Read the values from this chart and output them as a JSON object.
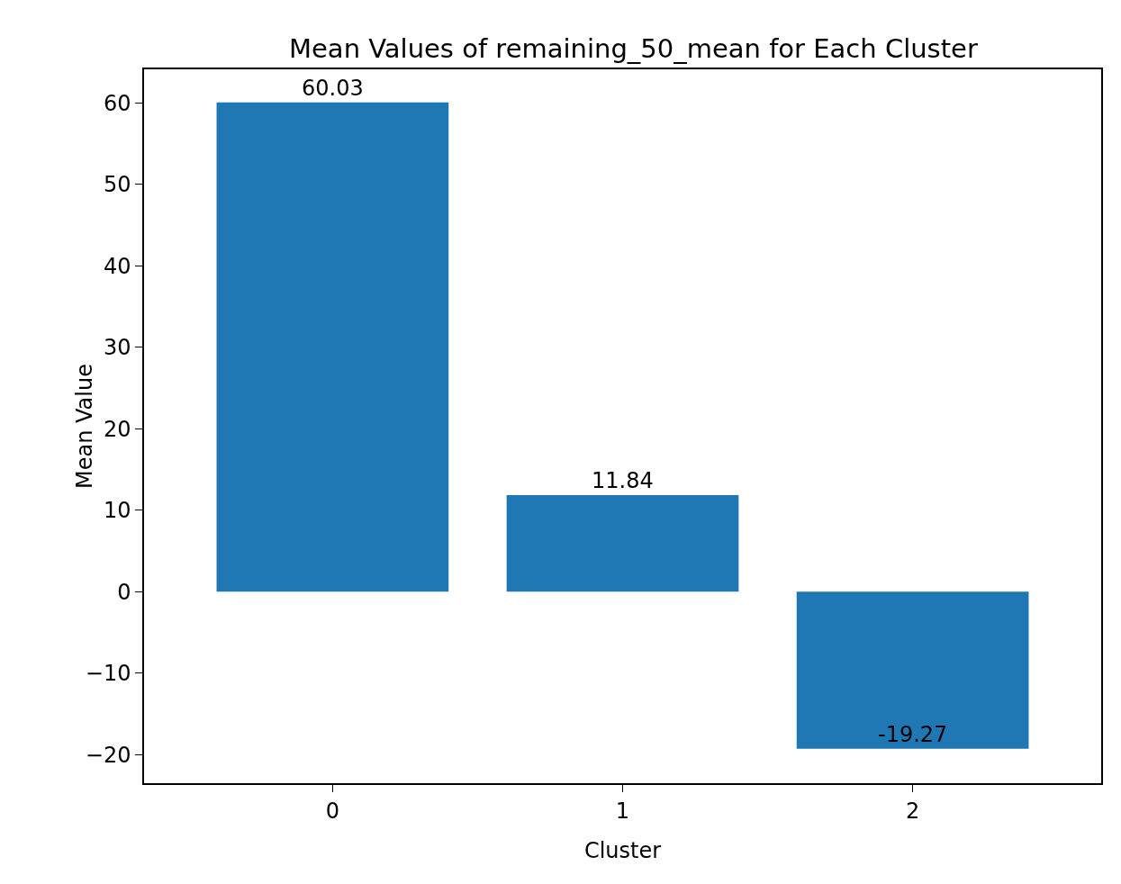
{
  "chart_data": {
    "type": "bar",
    "title": "Mean Values of remaining_50_mean for Each Cluster",
    "xlabel": "Cluster",
    "ylabel": "Mean Value",
    "categories": [
      "0",
      "1",
      "2"
    ],
    "values": [
      60.03,
      11.84,
      -19.27
    ],
    "color": "#1f77b4",
    "ylim": [
      -23.5,
      64.1
    ],
    "yticks": [
      {
        "value": -20,
        "label": "−20"
      },
      {
        "value": -10,
        "label": "−10"
      },
      0,
      10,
      20,
      30,
      40,
      50,
      60
    ],
    "data_labels": true,
    "grid": false,
    "legend": false
  }
}
